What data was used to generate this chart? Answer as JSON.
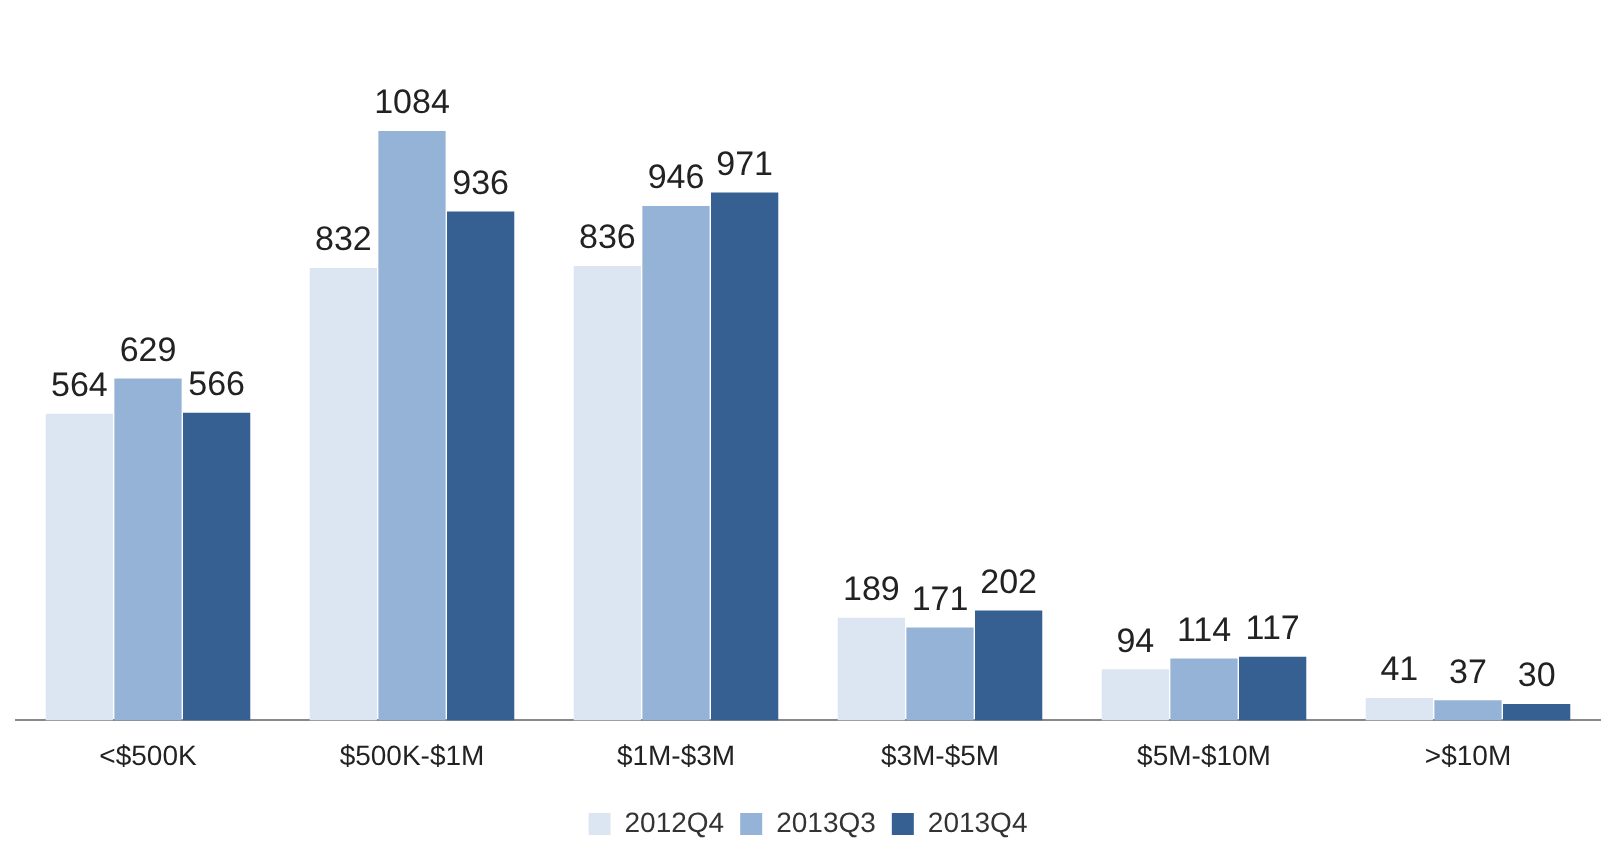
{
  "chart_data": {
    "type": "bar",
    "categories": [
      "<$500K",
      "$500K-$1M",
      "$1M-$3M",
      "$3M-$5M",
      "$5M-$10M",
      ">$10M"
    ],
    "series": [
      {
        "name": "2012Q4",
        "color": "#dce6f2",
        "values": [
          564,
          832,
          836,
          189,
          94,
          41
        ]
      },
      {
        "name": "2013Q3",
        "color": "#95b3d7",
        "values": [
          629,
          1084,
          946,
          171,
          114,
          37
        ]
      },
      {
        "name": "2013Q4",
        "color": "#376092",
        "values": [
          566,
          936,
          971,
          202,
          117,
          30
        ]
      }
    ],
    "data_labels": true,
    "grid": false,
    "legend": "bottom",
    "tick_labels": "x"
  }
}
